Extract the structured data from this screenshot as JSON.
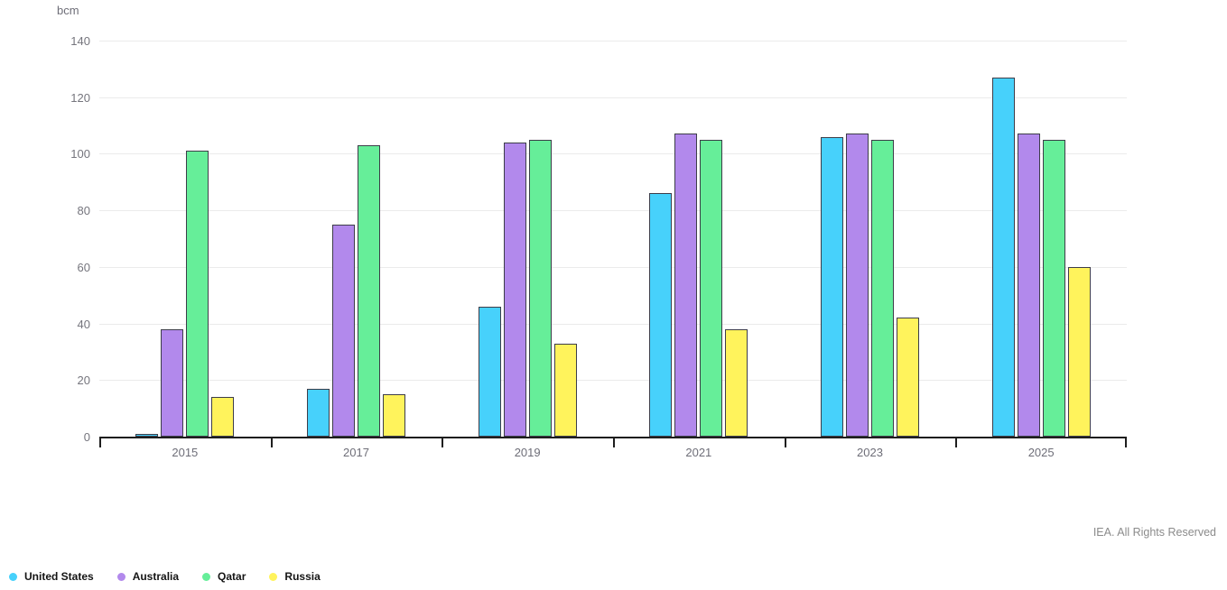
{
  "unit_label": "bcm",
  "footer": {
    "credit": "IEA. All Rights Reserved"
  },
  "colors": {
    "united_states": "#47d1fb",
    "australia": "#b289ec",
    "qatar": "#66ee99",
    "russia": "#fff35c",
    "bar_border": "#3d3d49",
    "gridline": "#ebebeb",
    "axis": "#1e1e1e",
    "tick_text": "#75757d"
  },
  "chart_data": {
    "type": "bar",
    "title": "",
    "xlabel": "",
    "ylabel": "bcm",
    "ylim": [
      0,
      140
    ],
    "ytick_step": 20,
    "grid": true,
    "legend_position": "bottom-left",
    "categories": [
      "2015",
      "2017",
      "2019",
      "2021",
      "2023",
      "2025"
    ],
    "series": [
      {
        "name": "United States",
        "color": "#47d1fb",
        "values": [
          1,
          17,
          46,
          86,
          106,
          127
        ]
      },
      {
        "name": "Australia",
        "color": "#b289ec",
        "values": [
          38,
          75,
          104,
          107,
          107,
          107
        ]
      },
      {
        "name": "Qatar",
        "color": "#66ee99",
        "values": [
          101,
          103,
          105,
          105,
          105,
          105
        ]
      },
      {
        "name": "Russia",
        "color": "#fff35c",
        "values": [
          14,
          15,
          33,
          38,
          42,
          60
        ]
      }
    ]
  }
}
